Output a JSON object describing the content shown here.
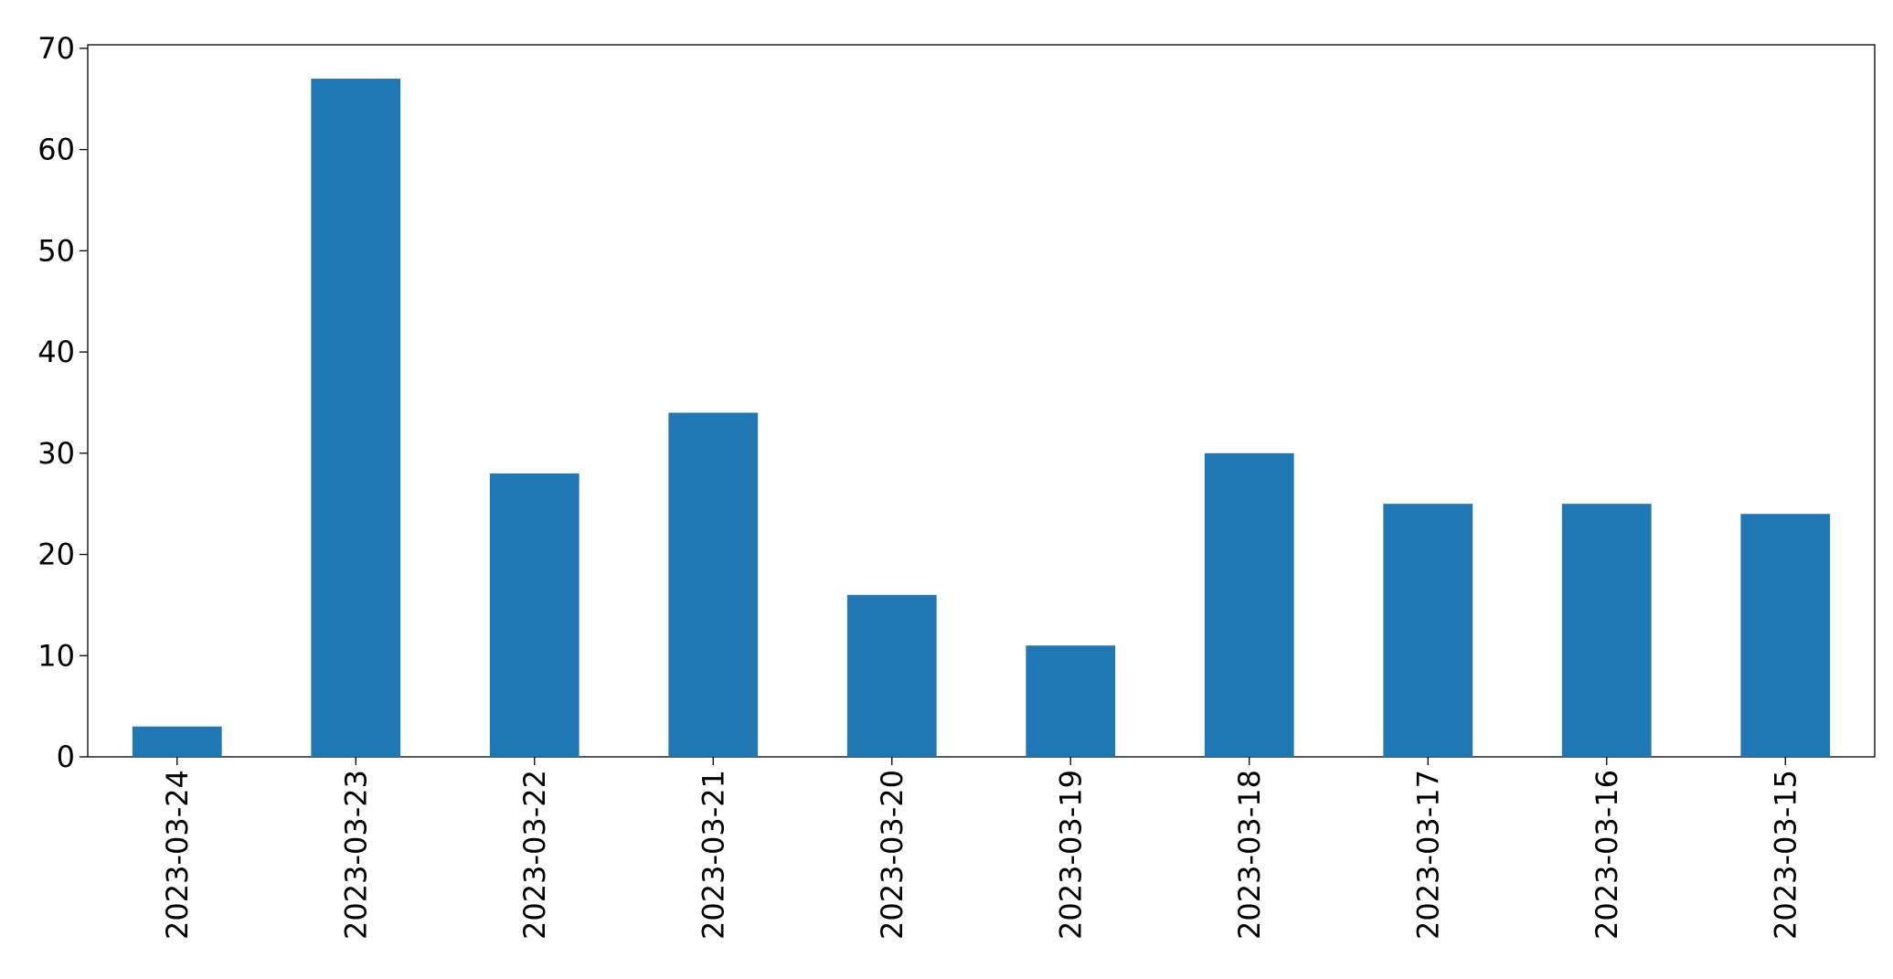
{
  "chart_data": {
    "type": "bar",
    "categories": [
      "2023-03-24",
      "2023-03-23",
      "2023-03-22",
      "2023-03-21",
      "2023-03-20",
      "2023-03-19",
      "2023-03-18",
      "2023-03-17",
      "2023-03-16",
      "2023-03-15"
    ],
    "values": [
      3,
      67,
      28,
      34,
      16,
      11,
      30,
      25,
      25,
      24
    ],
    "color": "#1f77b4",
    "ylim": [
      0,
      70.35
    ],
    "yticks": [
      0,
      10,
      20,
      30,
      40,
      50,
      60,
      70
    ],
    "grid": false
  }
}
